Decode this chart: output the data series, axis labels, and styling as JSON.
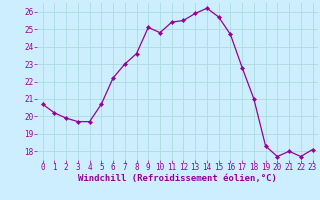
{
  "x": [
    0,
    1,
    2,
    3,
    4,
    5,
    6,
    7,
    8,
    9,
    10,
    11,
    12,
    13,
    14,
    15,
    16,
    17,
    18,
    19,
    20,
    21,
    22,
    23
  ],
  "y": [
    20.7,
    20.2,
    19.9,
    19.7,
    19.7,
    20.7,
    22.2,
    23.0,
    23.6,
    25.1,
    24.8,
    25.4,
    25.5,
    25.9,
    26.2,
    25.7,
    24.7,
    22.8,
    21.0,
    18.3,
    17.7,
    18.0,
    17.7,
    18.1
  ],
  "line_color": "#990099",
  "marker": "D",
  "marker_size": 2.2,
  "bg_color": "#cceeff",
  "grid_color": "#aadddd",
  "xlabel": "Windchill (Refroidissement éolien,°C)",
  "ylim_min": 17.5,
  "ylim_max": 26.5,
  "yticks": [
    18,
    19,
    20,
    21,
    22,
    23,
    24,
    25,
    26
  ],
  "xticks": [
    0,
    1,
    2,
    3,
    4,
    5,
    6,
    7,
    8,
    9,
    10,
    11,
    12,
    13,
    14,
    15,
    16,
    17,
    18,
    19,
    20,
    21,
    22,
    23
  ],
  "xlim_min": -0.5,
  "xlim_max": 23.5,
  "tick_fontsize": 5.5,
  "label_fontsize": 6.5,
  "linewidth": 0.9
}
